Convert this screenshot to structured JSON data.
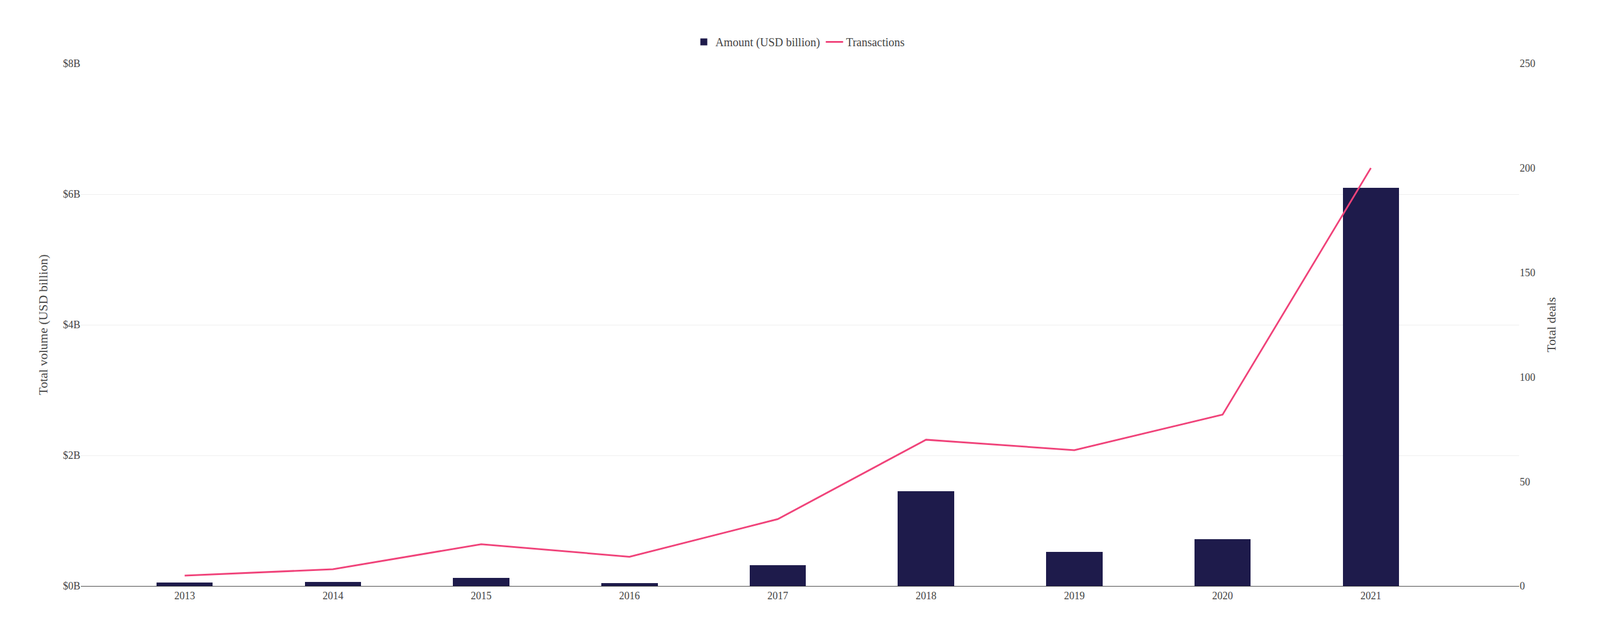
{
  "chart_data": {
    "type": "bar",
    "x": [
      2013,
      2014,
      2015,
      2016,
      2017,
      2018,
      2019,
      2020,
      2021
    ],
    "xlim": [
      2012.3,
      2022.0
    ],
    "xticks": [
      2013,
      2014,
      2015,
      2016,
      2017,
      2018,
      2019,
      2020,
      2021
    ],
    "ylabel": "Total volume (USD billion)",
    "y2label": "Total deals",
    "ylim": [
      0,
      8
    ],
    "yticks": [
      {
        "value": 0,
        "label": "$0B"
      },
      {
        "value": 2,
        "label": "$2B"
      },
      {
        "value": 4,
        "label": "$4B"
      },
      {
        "value": 6,
        "label": "$6B"
      },
      {
        "value": 8,
        "label": "$8B"
      }
    ],
    "y2lim": [
      0,
      250
    ],
    "y2ticks": [
      0,
      50,
      100,
      150,
      200,
      250
    ],
    "grid": true,
    "legend": "top",
    "series": [
      {
        "name": "Amount (USD billion)",
        "type": "bar",
        "color": "#1e1b4b",
        "values": [
          0.05,
          0.06,
          0.12,
          0.04,
          0.32,
          1.45,
          0.52,
          0.72,
          6.1
        ]
      },
      {
        "name": "Transactions",
        "type": "line",
        "color": "#f0437a",
        "axis": "y2",
        "values": [
          5,
          8,
          20,
          14,
          32,
          70,
          65,
          82,
          200
        ]
      }
    ]
  }
}
